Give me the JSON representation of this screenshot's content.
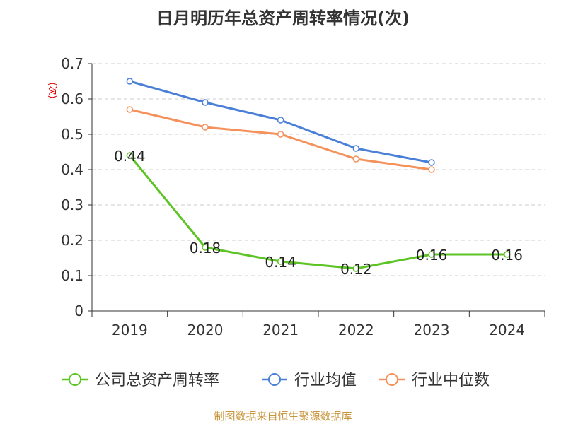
{
  "chart_data": {
    "type": "line",
    "title": "日月明历年总资产周转率情况(次)",
    "ylabel": "(次)",
    "xlabel": "",
    "categories": [
      "2019",
      "2020",
      "2021",
      "2022",
      "2023",
      "2024"
    ],
    "ylim": [
      0,
      0.7
    ],
    "yticks": [
      "0",
      "0.1",
      "0.2",
      "0.3",
      "0.4",
      "0.5",
      "0.6",
      "0.7"
    ],
    "grid": true,
    "legend_position": "bottom",
    "series": [
      {
        "name": "公司总资产周转率",
        "color": "#5cc424",
        "values": [
          0.44,
          0.18,
          0.14,
          0.12,
          0.16,
          0.16
        ],
        "labels": [
          "0.44",
          "0.18",
          "0.14",
          "0.12",
          "0.16",
          "0.16"
        ]
      },
      {
        "name": "行业均值",
        "color": "#4a7fd8",
        "values": [
          0.65,
          0.59,
          0.54,
          0.46,
          0.42,
          null
        ]
      },
      {
        "name": "行业中位数",
        "color": "#f5915a",
        "values": [
          0.57,
          0.52,
          0.5,
          0.43,
          0.4,
          null
        ]
      }
    ]
  },
  "source": {
    "text": "制图数据来自恒生聚源数据库",
    "color": "#c8963c"
  }
}
